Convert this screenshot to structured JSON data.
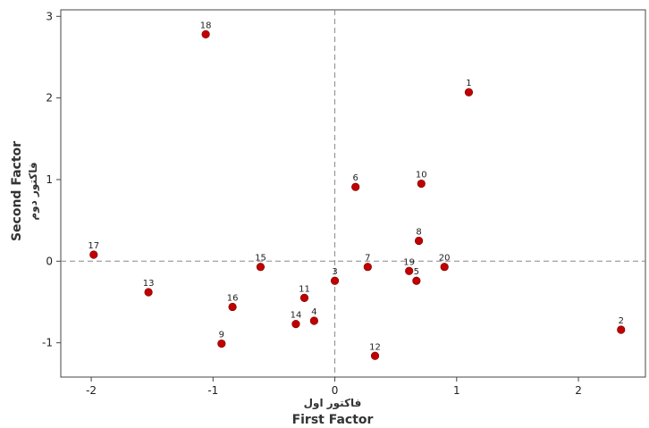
{
  "chart_data": {
    "type": "scatter",
    "xlabel": "First Factor",
    "xlabel_fa": "فاکتور اول",
    "ylabel": "Second Factor",
    "ylabel_fa": "فاکتور دوم",
    "xlim": [
      -2.25,
      2.55
    ],
    "ylim": [
      -1.42,
      3.08
    ],
    "xticks": [
      -2,
      -1,
      0,
      1,
      2
    ],
    "yticks": [
      -1,
      0,
      1,
      2,
      3
    ],
    "reference_lines": {
      "x": 0,
      "y": 0,
      "style": "dashed"
    },
    "grid": false,
    "legend": "none",
    "point_color": "#c00000",
    "points": [
      {
        "label": "1",
        "x": 1.1,
        "y": 2.07
      },
      {
        "label": "2",
        "x": 2.35,
        "y": -0.84
      },
      {
        "label": "3",
        "x": 0.0,
        "y": -0.24
      },
      {
        "label": "4",
        "x": -0.17,
        "y": -0.73
      },
      {
        "label": "5",
        "x": 0.67,
        "y": -0.24
      },
      {
        "label": "6",
        "x": 0.17,
        "y": 0.91
      },
      {
        "label": "7",
        "x": 0.27,
        "y": -0.07
      },
      {
        "label": "8",
        "x": 0.69,
        "y": 0.25
      },
      {
        "label": "9",
        "x": -0.93,
        "y": -1.01
      },
      {
        "label": "10",
        "x": 0.71,
        "y": 0.95
      },
      {
        "label": "11",
        "x": -0.25,
        "y": -0.45
      },
      {
        "label": "12",
        "x": 0.33,
        "y": -1.16
      },
      {
        "label": "13",
        "x": -1.53,
        "y": -0.38
      },
      {
        "label": "14",
        "x": -0.32,
        "y": -0.77
      },
      {
        "label": "15",
        "x": -0.61,
        "y": -0.07
      },
      {
        "label": "16",
        "x": -0.84,
        "y": -0.56
      },
      {
        "label": "17",
        "x": -1.98,
        "y": 0.08
      },
      {
        "label": "18",
        "x": -1.06,
        "y": 2.78
      },
      {
        "label": "19",
        "x": 0.61,
        "y": -0.12
      },
      {
        "label": "20",
        "x": 0.9,
        "y": -0.07
      }
    ]
  }
}
